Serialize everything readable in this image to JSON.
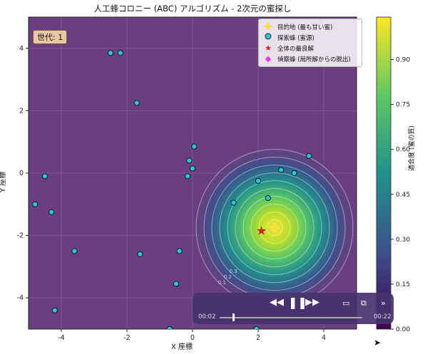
{
  "window": {
    "title": "人工蜂コロニー (ABC) アルゴリズム - 2次元の蜜探し"
  },
  "axes": {
    "xlabel": "X 座標",
    "ylabel": "Y 座標",
    "x_ticks": [
      "-4",
      "-2",
      "0",
      "2",
      "4"
    ],
    "y_ticks": [
      "4",
      "2",
      "0",
      "-2",
      "-4"
    ]
  },
  "colorbar": {
    "label": "適合度 (蜜の質)",
    "ticks": [
      "0.90",
      "0.75",
      "0.60",
      "0.45",
      "0.30",
      "0.15",
      "0.00"
    ]
  },
  "generation_badge": "世代: 1",
  "legend": {
    "items": [
      {
        "label": "目的地 (最も甘い蜜)",
        "icon": "yellow-cross-icon",
        "color": "#f5e23a"
      },
      {
        "label": "探索蜂 (蜜源)",
        "icon": "cyan-circle-icon",
        "color": "#25c8d8"
      },
      {
        "label": "全体の最良解",
        "icon": "red-star-icon",
        "color": "#e02020"
      },
      {
        "label": "偵察蜂 (局所解からの脱出)",
        "icon": "magenta-diamond-icon",
        "color": "#ff2ee0"
      }
    ]
  },
  "contour_labels": [
    "0.1",
    "0.2",
    "0.3"
  ],
  "colors": {
    "background": "#6a3e80",
    "accent": "#f5e23a"
  },
  "chart_data": {
    "type": "scatter",
    "title": "人工蜂コロニー (ABC) アルゴリズム - 2次元の蜜探し",
    "xlabel": "X 座標",
    "ylabel": "Y 座標",
    "xlim": [
      -5,
      5
    ],
    "ylim": [
      -5,
      5
    ],
    "series": [
      {
        "name": "探索蜂 (蜜源)",
        "points": [
          [
            -2.5,
            3.85
          ],
          [
            -2.2,
            3.85
          ],
          [
            -1.7,
            2.25
          ],
          [
            -4.5,
            -0.1
          ],
          [
            -4.8,
            -1.0
          ],
          [
            -4.3,
            -1.25
          ],
          [
            -3.6,
            -2.5
          ],
          [
            -1.6,
            -2.6
          ],
          [
            -0.4,
            -2.5
          ],
          [
            -0.5,
            -3.55
          ],
          [
            -4.2,
            -4.4
          ],
          [
            -0.7,
            -5.0
          ],
          [
            1.95,
            -5.0
          ],
          [
            0.05,
            0.85
          ],
          [
            -0.1,
            0.4
          ],
          [
            -0.15,
            -0.1
          ],
          [
            0.0,
            0.15
          ],
          [
            2.0,
            -0.25
          ],
          [
            2.7,
            0.1
          ],
          [
            3.1,
            0.0
          ],
          [
            3.55,
            0.55
          ],
          [
            2.3,
            -0.8
          ],
          [
            1.25,
            -0.95
          ]
        ]
      },
      {
        "name": "全体の最良解",
        "points": [
          [
            2.1,
            -1.85
          ]
        ]
      },
      {
        "name": "目的地 (最も甘い蜜)",
        "points": [
          [
            2.5,
            -1.75
          ]
        ]
      }
    ],
    "colorbar_range": [
      0.0,
      1.0
    ],
    "legend_position": "top-right",
    "grid": true
  },
  "player": {
    "current_time": "00:02",
    "duration": "00:22",
    "progress": 0.09,
    "buttons": {
      "rewind": "rewind-icon",
      "play_pause": "pause-icon",
      "forward": "fast-forward-icon",
      "airplay": "airplay-icon",
      "pip": "picture-in-picture-icon",
      "more": "chevron-double-right-icon"
    }
  }
}
